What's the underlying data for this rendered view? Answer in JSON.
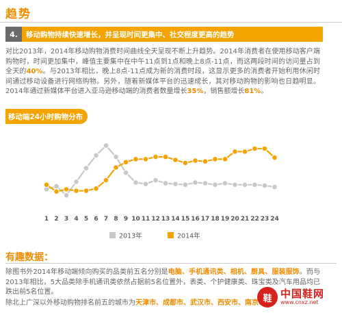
{
  "page": {
    "title": "趋势",
    "section_number": "4.",
    "section_title": "移动购物持续快速增长，并呈现时间更集中、社交程度更高的趋势",
    "intro_parts": [
      {
        "t": "对比2013年，2014年移动购物消费时间曲线全天呈现不断上升趋势。2014年消费者在使用移动客户端购物时，时间更加集中，峰值主要集中在中午11点到1点和晚上8点-11点，而这两段时间的访问量占到全天的",
        "h": false
      },
      {
        "t": "40%",
        "h": true
      },
      {
        "t": "。与2013年相比，晚上8点-11点成为新的消费时段，这显示更多的消费者开始利用休闲时间通过移动设备进行网络购物。另外，随着新媒体平台的迅速成长，其对移动购物的影响也日趋明显。2014年通过新媒体平台进入亚马逊移动端的消费者数量增长",
        "h": false
      },
      {
        "t": "35%",
        "h": true
      },
      {
        "t": "，销售额增长",
        "h": false
      },
      {
        "t": "81%",
        "h": true
      },
      {
        "t": "。",
        "h": false
      }
    ],
    "chart_tag": "移动端24小时购物分布",
    "subsection_title": "有趣数据：",
    "para2_parts": [
      {
        "t": "除图书外2014年移动端倾向购买的品类前五名分别是",
        "h": false
      },
      {
        "t": "电脑、手机通讯类、相机、厨具、服装服饰",
        "h": true
      },
      {
        "t": "。而与2013年相比，5大品类除手机通讯类依然占据前5名位置外，表类、个护健康类、珠宝类及汽车用品均已跌出前5名位置。",
        "h": false
      }
    ],
    "para3_parts": [
      {
        "t": "除北上广深以外移动购物排名前五的城市为",
        "h": false
      },
      {
        "t": "天津市、成都市、武汉市、西安市、南京市",
        "h": true
      },
      {
        "t": "。",
        "h": false
      }
    ]
  },
  "watermark": {
    "seal": "鞋",
    "name": "中国鞋网",
    "url": "www.cnxz.net"
  },
  "colors": {
    "accent": "#f5a300",
    "series_2013": "#c8c8c8",
    "series_2014": "#f5a300",
    "section_num_bg": "#6b6b6b",
    "watermark": "#d8211c"
  },
  "chart_data": {
    "type": "line",
    "x": [
      1,
      2,
      3,
      4,
      5,
      6,
      7,
      8,
      9,
      10,
      11,
      12,
      13,
      14,
      15,
      16,
      17,
      18,
      19,
      20,
      21,
      22,
      23,
      24
    ],
    "series": [
      {
        "name": "2013年",
        "color": "#c8c8c8",
        "values": [
          2.6,
          3.0,
          1.8,
          3.6,
          5.4,
          7.1,
          8.4,
          6.9,
          4.8,
          3.5,
          3.3,
          3.8,
          3.4,
          3.3,
          3.2,
          3.5,
          3.4,
          3.2,
          3.4,
          3.2,
          3.2,
          3.2,
          3.1,
          2.9
        ]
      },
      {
        "name": "2014年",
        "color": "#f5a300",
        "values": [
          3.2,
          2.3,
          2.6,
          2.4,
          2.4,
          2.7,
          3.8,
          5.5,
          6.2,
          6.6,
          6.6,
          6.9,
          6.9,
          6.5,
          6.1,
          6.4,
          6.3,
          6.6,
          6.6,
          7.6,
          7.6,
          8.0,
          8.0,
          6.8
        ]
      },
      {
        "name": "",
        "color": "#f5a300",
        "values": [
          null,
          null,
          null,
          null,
          null,
          null,
          null,
          null,
          null,
          null,
          null,
          null,
          null,
          null,
          null,
          null,
          null,
          null,
          null,
          null,
          null,
          null,
          null,
          null
        ]
      }
    ],
    "ylim": [
      0,
      10
    ],
    "grid": false,
    "legend_position": "bottom"
  }
}
